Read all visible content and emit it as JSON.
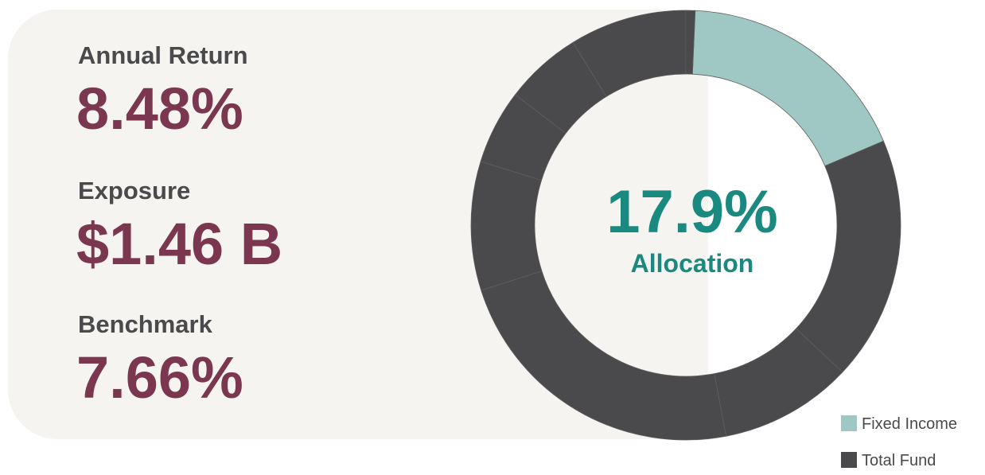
{
  "stats": [
    {
      "label": "Annual Return",
      "value": "8.48%"
    },
    {
      "label": "Exposure",
      "value": "$1.46 B"
    },
    {
      "label": "Benchmark",
      "value": "7.66%"
    }
  ],
  "chart_data": {
    "type": "donut",
    "center_label": "Allocation",
    "series": [
      {
        "name": "Fixed Income",
        "color": "#9fc7c4",
        "values": [
          17.9
        ],
        "value_labels": [
          "17.9%"
        ]
      },
      {
        "name": "Total Fund",
        "color": "#4a4a4c",
        "values": [
          18.4,
          10.0,
          23.1,
          9.7,
          5.6,
          5.8,
          8.8,
          0.7
        ]
      }
    ]
  }
}
